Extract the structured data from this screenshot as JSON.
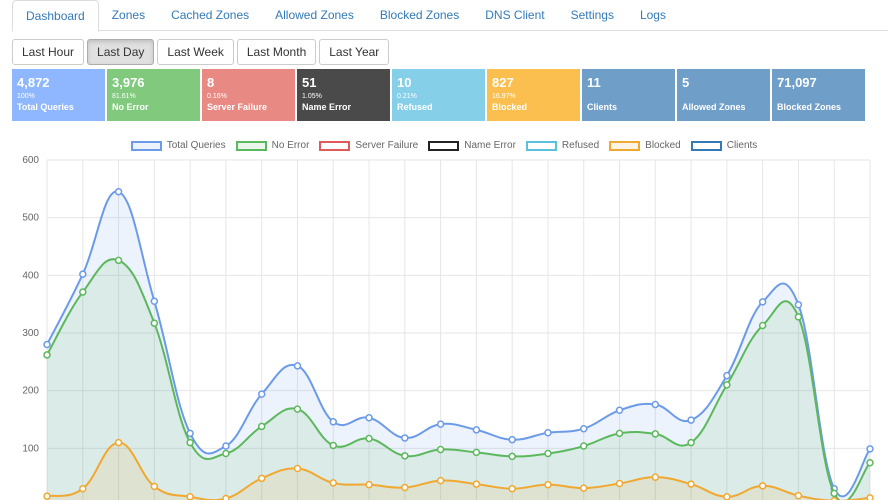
{
  "nav": {
    "tabs": [
      {
        "label": "Dashboard",
        "active": true
      },
      {
        "label": "Zones"
      },
      {
        "label": "Cached Zones"
      },
      {
        "label": "Allowed Zones"
      },
      {
        "label": "Blocked Zones"
      },
      {
        "label": "DNS Client"
      },
      {
        "label": "Settings"
      },
      {
        "label": "Logs"
      }
    ]
  },
  "range": {
    "buttons": [
      {
        "label": "Last Hour"
      },
      {
        "label": "Last Day",
        "active": true
      },
      {
        "label": "Last Week"
      },
      {
        "label": "Last Month"
      },
      {
        "label": "Last Year"
      }
    ]
  },
  "stats": [
    {
      "value": "4,872",
      "percent": "100%",
      "label": "Total Queries",
      "color": "#8fb7ff"
    },
    {
      "value": "3,976",
      "percent": "81.61%",
      "label": "No Error",
      "color": "#80c97d"
    },
    {
      "value": "8",
      "percent": "0.16%",
      "label": "Server Failure",
      "color": "#e98983"
    },
    {
      "value": "51",
      "percent": "1.05%",
      "label": "Name Error",
      "color": "#4a4a4a"
    },
    {
      "value": "10",
      "percent": "0.21%",
      "label": "Refused",
      "color": "#85cfe8"
    },
    {
      "value": "827",
      "percent": "16.97%",
      "label": "Blocked",
      "color": "#fbbf4f"
    },
    {
      "value": "11",
      "percent": "",
      "label": "Clients",
      "color": "#6f9ec9"
    },
    {
      "value": "5",
      "percent": "",
      "label": "Allowed Zones",
      "color": "#6f9ec9"
    },
    {
      "value": "71,097",
      "percent": "",
      "label": "Blocked Zones",
      "color": "#6f9ec9"
    }
  ],
  "chart_data": {
    "type": "line",
    "ylim": [
      0,
      600
    ],
    "yticks": [
      100,
      200,
      300,
      400,
      500,
      600
    ],
    "grid": true,
    "legend_position": "top",
    "series": [
      {
        "name": "Total Queries",
        "color": "#6b9be8",
        "fill": "rgba(107,155,232,0.12)",
        "values": [
          280,
          402,
          545,
          355,
          126,
          104,
          194,
          243,
          146,
          153,
          118,
          142,
          132,
          115,
          127,
          134,
          166,
          176,
          149,
          226,
          354,
          349,
          30,
          99
        ]
      },
      {
        "name": "No Error",
        "color": "#5cb85c",
        "fill": "rgba(92,184,92,0.12)",
        "values": [
          262,
          371,
          426,
          317,
          110,
          91,
          138,
          168,
          105,
          117,
          87,
          98,
          93,
          86,
          91,
          104,
          126,
          125,
          110,
          210,
          313,
          328,
          22,
          75
        ]
      },
      {
        "name": "Server Failure",
        "color": "#e05a5a",
        "fill": "none",
        "values": [
          0,
          0,
          1,
          0,
          0,
          0,
          0,
          1,
          0,
          0,
          0,
          0,
          0,
          0,
          0,
          0,
          0,
          0,
          0,
          0,
          0,
          0,
          0,
          1
        ]
      },
      {
        "name": "Name Error",
        "color": "#222222",
        "fill": "none",
        "values": [
          1,
          1,
          2,
          1,
          0,
          0,
          3,
          4,
          0,
          1,
          0,
          1,
          0,
          1,
          1,
          0,
          1,
          0,
          0,
          0,
          1,
          0,
          0,
          2
        ]
      },
      {
        "name": "Refused",
        "color": "#5bc0de",
        "fill": "none",
        "values": [
          0,
          0,
          0,
          0,
          0,
          0,
          1,
          0,
          0,
          0,
          0,
          0,
          0,
          0,
          0,
          1,
          0,
          0,
          0,
          0,
          0,
          0,
          0,
          0
        ]
      },
      {
        "name": "Blocked",
        "color": "#f0a830",
        "fill": "rgba(240,168,48,0.12)",
        "values": [
          17,
          30,
          110,
          34,
          16,
          13,
          48,
          65,
          40,
          37,
          32,
          44,
          38,
          30,
          37,
          31,
          39,
          50,
          38,
          16,
          35,
          18,
          9,
          14
        ]
      },
      {
        "name": "Clients",
        "color": "#337ab7",
        "fill": "none",
        "values": [
          3,
          3,
          4,
          3,
          2,
          2,
          3,
          3,
          2,
          2,
          2,
          2,
          2,
          2,
          2,
          2,
          2,
          2,
          2,
          2,
          3,
          3,
          2,
          3
        ]
      }
    ]
  }
}
